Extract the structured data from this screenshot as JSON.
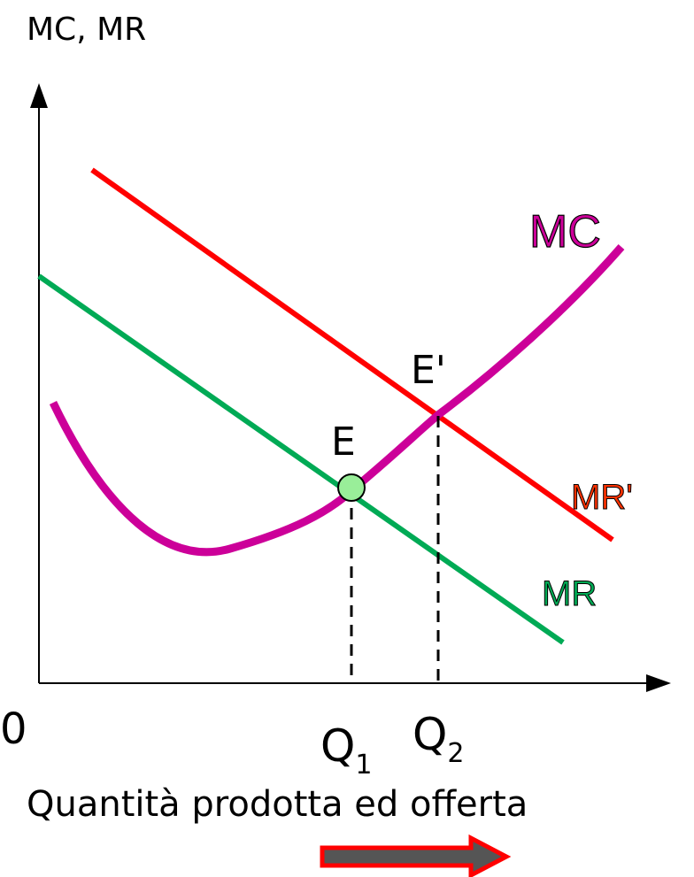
{
  "chart_data": {
    "type": "line",
    "ylabel": "MC, MR",
    "xlabel": "Quantità prodotta ed offerta",
    "origin_label": "0",
    "series": [
      {
        "name": "MC",
        "color": "#cc0099",
        "kind": "u-curve"
      },
      {
        "name": "MR",
        "color": "#00aa55",
        "kind": "linear"
      },
      {
        "name": "MR'",
        "color": "#ff0000",
        "kind": "linear"
      }
    ],
    "points": [
      {
        "label": "E",
        "marker": true
      },
      {
        "label": "E'",
        "marker": false
      }
    ],
    "ticks": [
      {
        "main": "Q",
        "sub": "1"
      },
      {
        "main": "Q",
        "sub": "2"
      }
    ],
    "arrow": {
      "fill": "#555555",
      "stroke": "#ff0000"
    }
  }
}
